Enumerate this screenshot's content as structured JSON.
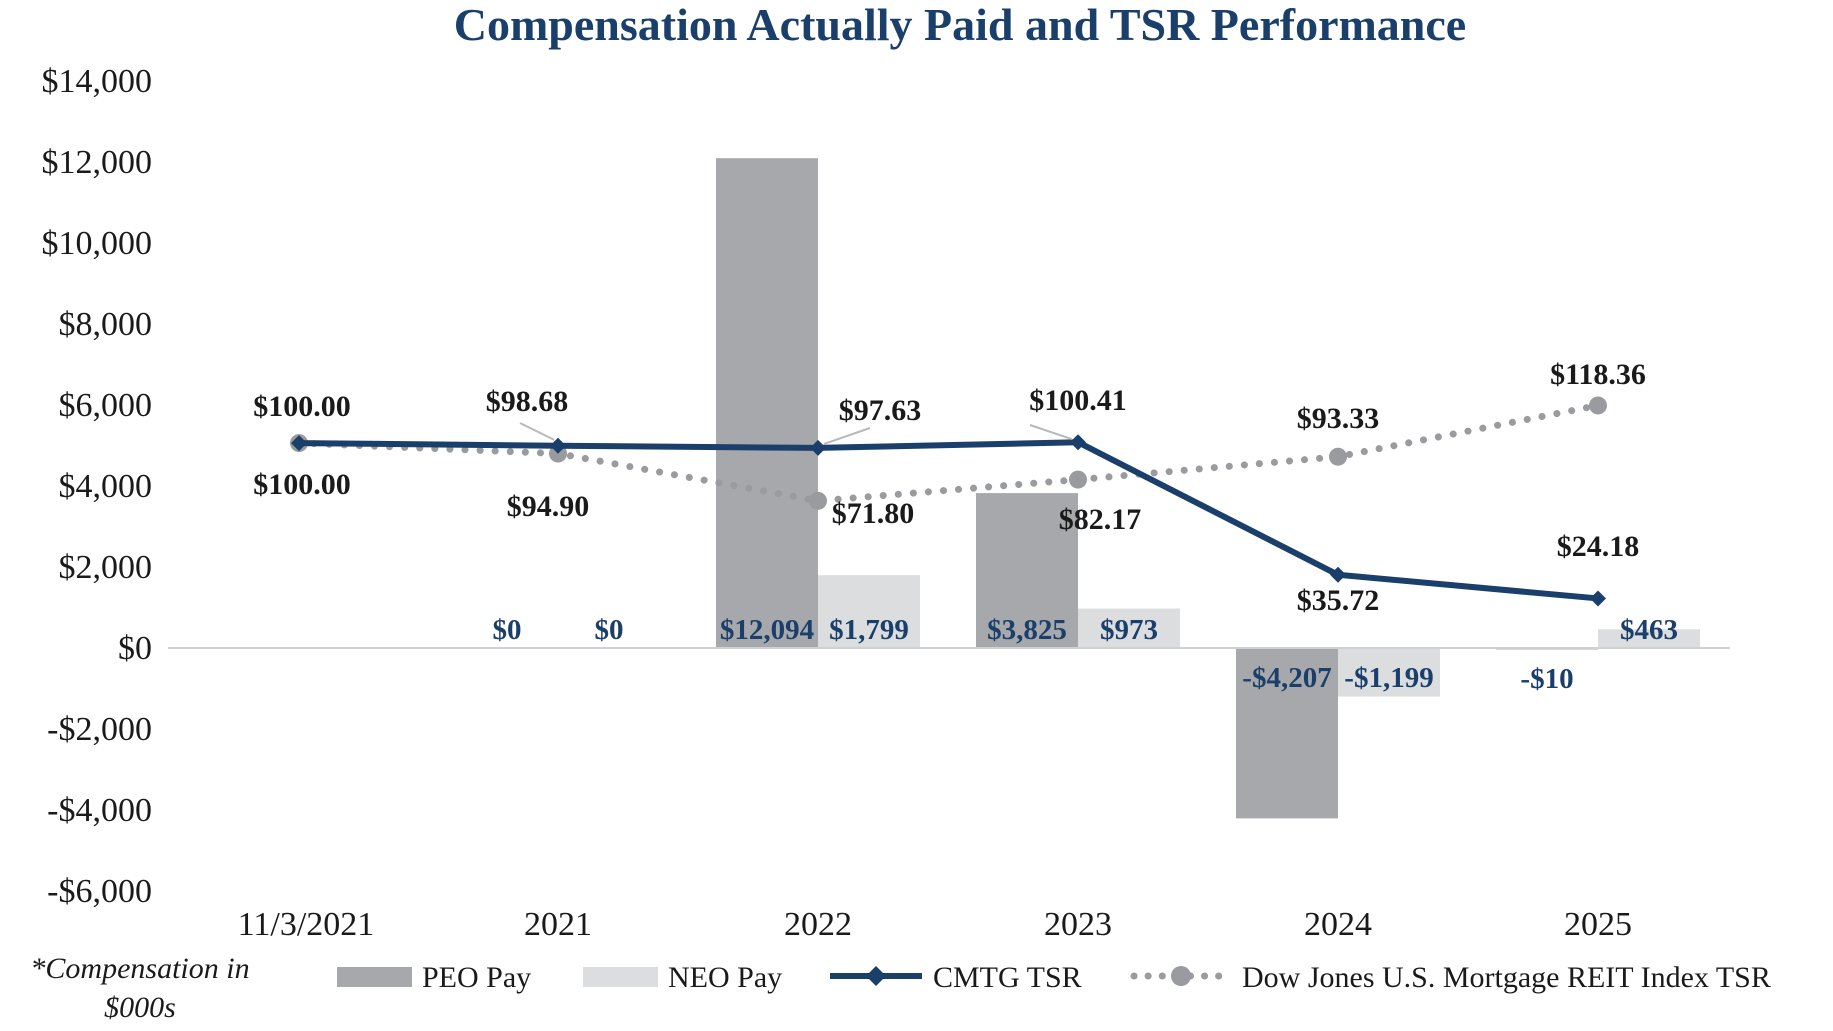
{
  "chart_data": {
    "type": "bar",
    "title": "Compensation Actually Paid and TSR Performance",
    "categories": [
      "11/3/2021",
      "2021",
      "2022",
      "2023",
      "2024",
      "2025"
    ],
    "ylim": [
      -6000,
      14000
    ],
    "yticks": [
      14000,
      12000,
      10000,
      8000,
      6000,
      4000,
      2000,
      0,
      -2000,
      -4000,
      -6000
    ],
    "ytick_labels": [
      "$14,000",
      "$12,000",
      "$10,000",
      "$8,000",
      "$6,000",
      "$4,000",
      "$2,000",
      "$0",
      "-$2,000",
      "-$4,000",
      "-$6,000"
    ],
    "note": [
      "*Compensation in",
      "$000s"
    ],
    "series": [
      {
        "name": "PEO Pay",
        "kind": "bar",
        "color": "#a7a8ab",
        "values": [
          null,
          0,
          12094,
          3825,
          -4207,
          -10
        ],
        "labels": [
          "",
          "$0",
          "$12,094",
          "$3,825",
          "-$4,207",
          "-$10"
        ]
      },
      {
        "name": "NEO Pay",
        "kind": "bar",
        "color": "#dcdddf",
        "values": [
          null,
          0,
          1799,
          973,
          -1199,
          463
        ],
        "labels": [
          "",
          "$0",
          "$1,799",
          "$973",
          "-$1,199",
          "$463"
        ]
      },
      {
        "name": "CMTG TSR",
        "kind": "line",
        "color": "#1b3f6b",
        "values": [
          100.0,
          98.68,
          97.63,
          100.41,
          35.72,
          24.18
        ],
        "labels": [
          "$100.00",
          "$98.68",
          "$97.63",
          "$100.41",
          "$35.72",
          "$24.18"
        ]
      },
      {
        "name": "Dow Jones U.S. Mortgage REIT Index TSR",
        "kind": "dotted-line",
        "color": "#9a9b9e",
        "values": [
          100.0,
          94.9,
          71.8,
          82.17,
          93.33,
          118.36
        ],
        "labels": [
          "$100.00",
          "$94.90",
          "$71.80",
          "$82.17",
          "$93.33",
          "$118.36"
        ]
      }
    ]
  }
}
